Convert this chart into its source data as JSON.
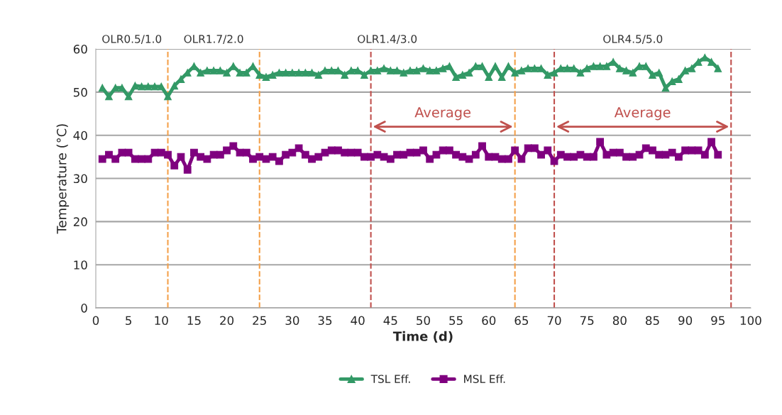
{
  "chart_data": {
    "type": "line",
    "xlabel": "Time (d)",
    "ylabel": "Temperature (°C)",
    "x": [
      1,
      2,
      3,
      4,
      5,
      6,
      7,
      8,
      9,
      10,
      11,
      12,
      13,
      14,
      15,
      16,
      17,
      18,
      19,
      20,
      21,
      22,
      23,
      24,
      25,
      26,
      27,
      28,
      29,
      30,
      31,
      32,
      33,
      34,
      35,
      36,
      37,
      38,
      39,
      40,
      41,
      42,
      43,
      44,
      45,
      46,
      47,
      48,
      49,
      50,
      51,
      52,
      53,
      54,
      55,
      56,
      57,
      58,
      59,
      60,
      61,
      62,
      63,
      64,
      65,
      66,
      67,
      68,
      69,
      70,
      71,
      72,
      73,
      74,
      75,
      76,
      77,
      78,
      79,
      80,
      81,
      82,
      83,
      84,
      85,
      86,
      87,
      88,
      89,
      90,
      91,
      92,
      93,
      94,
      95
    ],
    "series": [
      {
        "name": "TSL Eff.",
        "color": "#339966",
        "marker": "triangle",
        "values": [
          51,
          49,
          51,
          51,
          49,
          51.5,
          51.3,
          51.3,
          51.3,
          51.3,
          49,
          51.5,
          53,
          54.5,
          56,
          54.5,
          55,
          55,
          55,
          54.5,
          56,
          54.5,
          54.5,
          56,
          54,
          53.5,
          54,
          54.5,
          54.5,
          54.5,
          54.5,
          54.5,
          54.5,
          54,
          55,
          55,
          55,
          54,
          55,
          55,
          54,
          55,
          55,
          55.5,
          55,
          55,
          54.5,
          55,
          55,
          55.5,
          55,
          55,
          55.5,
          56,
          53.5,
          54,
          54.5,
          56,
          56,
          53.5,
          56,
          53.5,
          56,
          54.5,
          55,
          55.5,
          55.5,
          55.5,
          54,
          54.5,
          55.5,
          55.5,
          55.5,
          54.5,
          55.5,
          56,
          56,
          56,
          57,
          55.5,
          55,
          54.5,
          56,
          56,
          54,
          54.5,
          51,
          52.5,
          53,
          55,
          55.5,
          57,
          58,
          57,
          55.5
        ]
      },
      {
        "name": "MSL Eff.",
        "color": "#7f007f",
        "marker": "square",
        "values": [
          34.5,
          35.5,
          34.5,
          36,
          36,
          34.5,
          34.5,
          34.5,
          36,
          36,
          35.5,
          33,
          35,
          32,
          36,
          35,
          34.5,
          35.5,
          35.5,
          36.5,
          37.5,
          36,
          36,
          34.5,
          35,
          34.5,
          35,
          34,
          35.5,
          36,
          37,
          35.5,
          34.5,
          35,
          36,
          36.5,
          36.5,
          36,
          36,
          36,
          35,
          35,
          35.5,
          35,
          34.5,
          35.5,
          35.5,
          36,
          36,
          36.5,
          34.5,
          35.5,
          36.5,
          36.5,
          35.5,
          35,
          34.5,
          35.5,
          37.5,
          35,
          35,
          34.5,
          34.5,
          36.5,
          34.5,
          37,
          37,
          35.5,
          36.5,
          34,
          35.5,
          35,
          35,
          35.5,
          35,
          35,
          38.5,
          35.5,
          36,
          36,
          35,
          35,
          35.5,
          37,
          36.5,
          35.5,
          35.5,
          36,
          35,
          36.5,
          36.5,
          36.5,
          35.5,
          38.5,
          35.5
        ]
      }
    ],
    "xlim": [
      0,
      100
    ],
    "xticks": [
      0,
      5,
      10,
      15,
      20,
      25,
      30,
      35,
      40,
      45,
      50,
      55,
      60,
      65,
      70,
      75,
      80,
      85,
      90,
      95,
      100
    ],
    "ylim": [
      0,
      60
    ],
    "yticks": [
      0,
      10,
      20,
      30,
      40,
      50,
      60
    ],
    "grid": "y",
    "legend": "bottom",
    "line_style": "solid",
    "ref_lines": [
      {
        "axis": "x",
        "value": 11,
        "color": "#f4a04a",
        "line_style": "dashed"
      },
      {
        "axis": "x",
        "value": 25,
        "color": "#f4a04a",
        "line_style": "dashed"
      },
      {
        "axis": "x",
        "value": 64,
        "color": "#f4a04a",
        "line_style": "dashed"
      },
      {
        "axis": "x",
        "value": 42,
        "color": "#c0504d",
        "line_style": "dashed"
      },
      {
        "axis": "x",
        "value": 70,
        "color": "#c0504d",
        "line_style": "dashed"
      },
      {
        "axis": "x",
        "value": 97,
        "color": "#c0504d",
        "line_style": "dashed"
      }
    ],
    "annotations": [
      "OLR0.5/1.0",
      "OLR1.7/2.0",
      "OLR1.4/3.0",
      "OLR4.5/5.0",
      "Average",
      "Average"
    ]
  }
}
